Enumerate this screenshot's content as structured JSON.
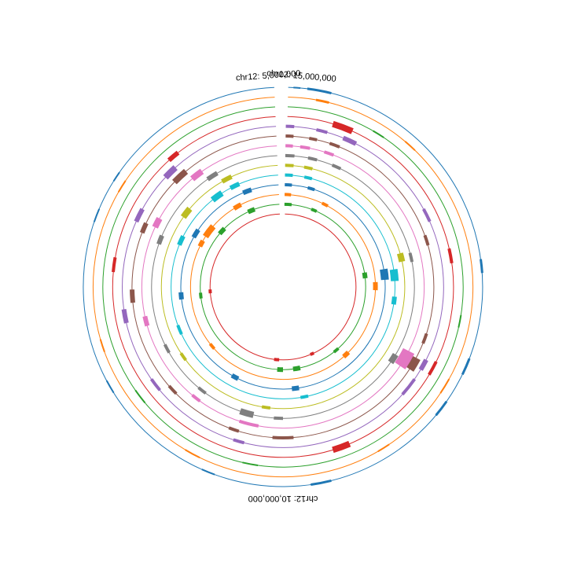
{
  "chart_data": {
    "type": "circular-genome-tracks",
    "title": "",
    "chromosome": "chr12",
    "position_labels": [
      {
        "text": "chr12: 5,000,000",
        "angle_deg": -4
      },
      {
        "text": "chr12: 15,000,000",
        "angle_deg": 5
      },
      {
        "text": "chr12: 10,000,000",
        "angle_deg": 180
      }
    ],
    "tracks": [
      {
        "color": "#1f77b4",
        "features": [
          [
            3,
            5,
            2
          ],
          [
            7,
            14,
            3
          ],
          [
            82,
            86,
            3
          ],
          [
            111,
            116,
            3
          ],
          [
            125,
            130,
            3
          ],
          [
            166,
            172,
            3
          ],
          [
            200,
            204,
            2
          ],
          [
            238,
            242,
            2
          ],
          [
            289,
            293,
            2
          ],
          [
            302,
            305,
            2
          ]
        ]
      },
      {
        "color": "#ff7f0e",
        "features": [
          [
            10,
            14,
            3
          ],
          [
            40,
            44,
            2
          ],
          [
            119,
            124,
            2
          ],
          [
            146,
            150,
            2
          ],
          [
            206,
            211,
            2
          ],
          [
            250,
            254,
            2
          ],
          [
            300,
            304,
            2
          ]
        ]
      },
      {
        "color": "#2ca02c",
        "features": [
          [
            30,
            34,
            2
          ],
          [
            99,
            103,
            2
          ],
          [
            188,
            193,
            2
          ],
          [
            230,
            235,
            2
          ]
        ]
      },
      {
        "color": "#d62728",
        "features": [
          [
            17,
            24,
            8
          ],
          [
            77,
            82,
            4
          ],
          [
            116,
            121,
            4
          ],
          [
            157,
            163,
            8
          ],
          [
            275,
            280,
            4
          ],
          [
            318,
            322,
            6
          ]
        ]
      },
      {
        "color": "#9467bd",
        "features": [
          [
            1,
            4,
            4
          ],
          [
            12,
            16,
            4
          ],
          [
            22,
            27,
            6
          ],
          [
            61,
            66,
            4
          ],
          [
            117,
            121,
            6
          ],
          [
            125,
            132,
            4
          ],
          [
            194,
            198,
            4
          ],
          [
            230,
            235,
            4
          ],
          [
            257,
            262,
            6
          ],
          [
            294,
            299,
            6
          ],
          [
            313,
            318,
            8
          ]
        ]
      },
      {
        "color": "#8c564b",
        "features": [
          [
            1,
            4,
            4
          ],
          [
            10,
            13,
            4
          ],
          [
            18,
            22,
            4
          ],
          [
            70,
            74,
            4
          ],
          [
            108,
            112,
            4
          ],
          [
            118,
            123,
            12
          ],
          [
            176,
            184,
            4
          ],
          [
            197,
            201,
            4
          ],
          [
            225,
            229,
            4
          ],
          [
            264,
            269,
            6
          ],
          [
            291,
            295,
            6
          ],
          [
            314,
            320,
            8
          ]
        ]
      },
      {
        "color": "#e377c2",
        "features": [
          [
            1,
            4,
            4
          ],
          [
            7,
            11,
            4
          ],
          [
            17,
            21,
            4
          ],
          [
            117,
            124,
            16
          ],
          [
            190,
            198,
            4
          ],
          [
            216,
            220,
            4
          ],
          [
            254,
            258,
            6
          ],
          [
            295,
            299,
            8
          ],
          [
            320,
            325,
            8
          ]
        ]
      },
      {
        "color": "#7f7f7f",
        "features": [
          [
            1,
            5,
            4
          ],
          [
            11,
            15,
            4
          ],
          [
            22,
            26,
            4
          ],
          [
            75,
            79,
            4
          ],
          [
            121,
            125,
            8
          ],
          [
            180,
            184,
            4
          ],
          [
            193,
            199,
            8
          ],
          [
            216,
            220,
            4
          ],
          [
            240,
            244,
            4
          ],
          [
            289,
            293,
            6
          ],
          [
            325,
            330,
            6
          ]
        ]
      },
      {
        "color": "#bcbd22",
        "features": [
          [
            1,
            5,
            4
          ],
          [
            10,
            14,
            4
          ],
          [
            74,
            78,
            8
          ],
          [
            186,
            190,
            4
          ],
          [
            233,
            237,
            4
          ],
          [
            305,
            310,
            8
          ],
          [
            330,
            335,
            6
          ]
        ]
      },
      {
        "color": "#17becf",
        "features": [
          [
            1,
            5,
            4
          ],
          [
            11,
            15,
            4
          ],
          [
            81,
            87,
            10
          ],
          [
            95,
            99,
            6
          ],
          [
            167,
            171,
            4
          ],
          [
            245,
            250,
            4
          ],
          [
            292,
            297,
            6
          ],
          [
            321,
            327,
            8
          ],
          [
            332,
            337,
            6
          ]
        ]
      },
      {
        "color": "#1f77b4",
        "features": [
          [
            1,
            5,
            4
          ],
          [
            14,
            18,
            4
          ],
          [
            80,
            86,
            10
          ],
          [
            171,
            175,
            6
          ],
          [
            206,
            210,
            6
          ],
          [
            263,
            267,
            6
          ],
          [
            299,
            304,
            6
          ],
          [
            337,
            342,
            6
          ]
        ]
      },
      {
        "color": "#ff7f0e",
        "features": [
          [
            1,
            5,
            4
          ],
          [
            25,
            29,
            4
          ],
          [
            87,
            92,
            6
          ],
          [
            135,
            139,
            6
          ],
          [
            228,
            232,
            4
          ],
          [
            296,
            300,
            6
          ],
          [
            303,
            311,
            8
          ],
          [
            328,
            333,
            6
          ]
        ]
      },
      {
        "color": "#2ca02c",
        "features": [
          [
            1,
            6,
            4
          ],
          [
            20,
            24,
            4
          ],
          [
            80,
            84,
            6
          ],
          [
            138,
            142,
            4
          ],
          [
            168,
            173,
            6
          ],
          [
            180,
            184,
            6
          ],
          [
            262,
            266,
            4
          ],
          [
            310,
            315,
            6
          ],
          [
            335,
            340,
            6
          ]
        ]
      },
      {
        "color": "#d62728",
        "features": [
          [
            155,
            158,
            4
          ],
          [
            183,
            187,
            4
          ],
          [
            265,
            268,
            4
          ]
        ]
      }
    ]
  }
}
